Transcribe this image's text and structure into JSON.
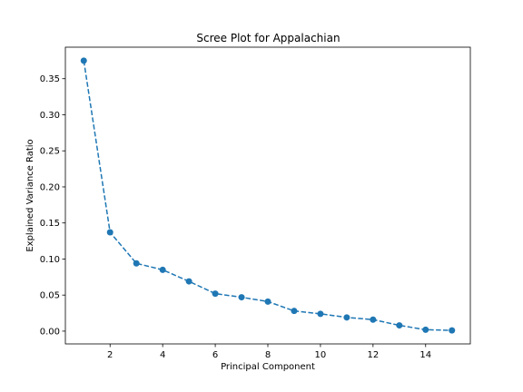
{
  "chart_data": {
    "type": "line",
    "title": "Scree Plot for Appalachian",
    "xlabel": "Principal Component",
    "ylabel": "Explained Variance Ratio",
    "x": [
      1,
      2,
      3,
      4,
      5,
      6,
      7,
      8,
      9,
      10,
      11,
      12,
      13,
      14,
      15
    ],
    "series": [
      {
        "values": [
          0.375,
          0.137,
          0.094,
          0.085,
          0.069,
          0.052,
          0.047,
          0.041,
          0.028,
          0.024,
          0.019,
          0.016,
          0.008,
          0.002,
          0.001
        ]
      }
    ],
    "xlim": [
      0.3,
      15.7
    ],
    "ylim": [
      -0.0177,
      0.3937
    ],
    "xticks": [
      2,
      4,
      6,
      8,
      10,
      12,
      14
    ],
    "yticks": [
      0.0,
      0.05,
      0.1,
      0.15,
      0.2,
      0.25,
      0.3,
      0.35
    ],
    "xtick_labels": [
      "2",
      "4",
      "6",
      "8",
      "10",
      "12",
      "14"
    ],
    "ytick_labels": [
      "0.00",
      "0.05",
      "0.10",
      "0.15",
      "0.20",
      "0.25",
      "0.30",
      "0.35"
    ],
    "line_style": "dashed",
    "marker": "circle",
    "color": "#1f77b4",
    "grid": false,
    "legend": "none"
  }
}
